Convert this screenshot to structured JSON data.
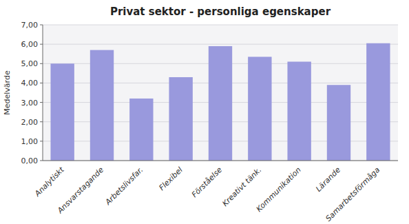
{
  "chart_data": {
    "type": "bar",
    "title": "Privat sektor - personliga egenskaper",
    "ylabel": "Medelvärde",
    "categories": [
      "Analytiskt",
      "Ansvarstagande",
      "Arbetslivsfar.",
      "Flexibel",
      "Förståelse",
      "Kreativt tänk.",
      "Kommunikation",
      "Lärande",
      "Samarbetsförmåga"
    ],
    "values": [
      5.0,
      5.7,
      3.2,
      4.3,
      5.9,
      5.35,
      5.1,
      3.9,
      6.05
    ],
    "color": "#9999dd",
    "ylim": [
      0,
      7.0
    ],
    "yticks": [
      {
        "value": 0.0,
        "label": "0,00"
      },
      {
        "value": 1.0,
        "label": "1,00"
      },
      {
        "value": 2.0,
        "label": "2,00"
      },
      {
        "value": 3.0,
        "label": "3,00"
      },
      {
        "value": 4.0,
        "label": "4,00"
      },
      {
        "value": 5.0,
        "label": "5,00"
      },
      {
        "value": 6.0,
        "label": "6,00"
      },
      {
        "value": 7.0,
        "label": "7,00"
      }
    ],
    "grid": true
  }
}
